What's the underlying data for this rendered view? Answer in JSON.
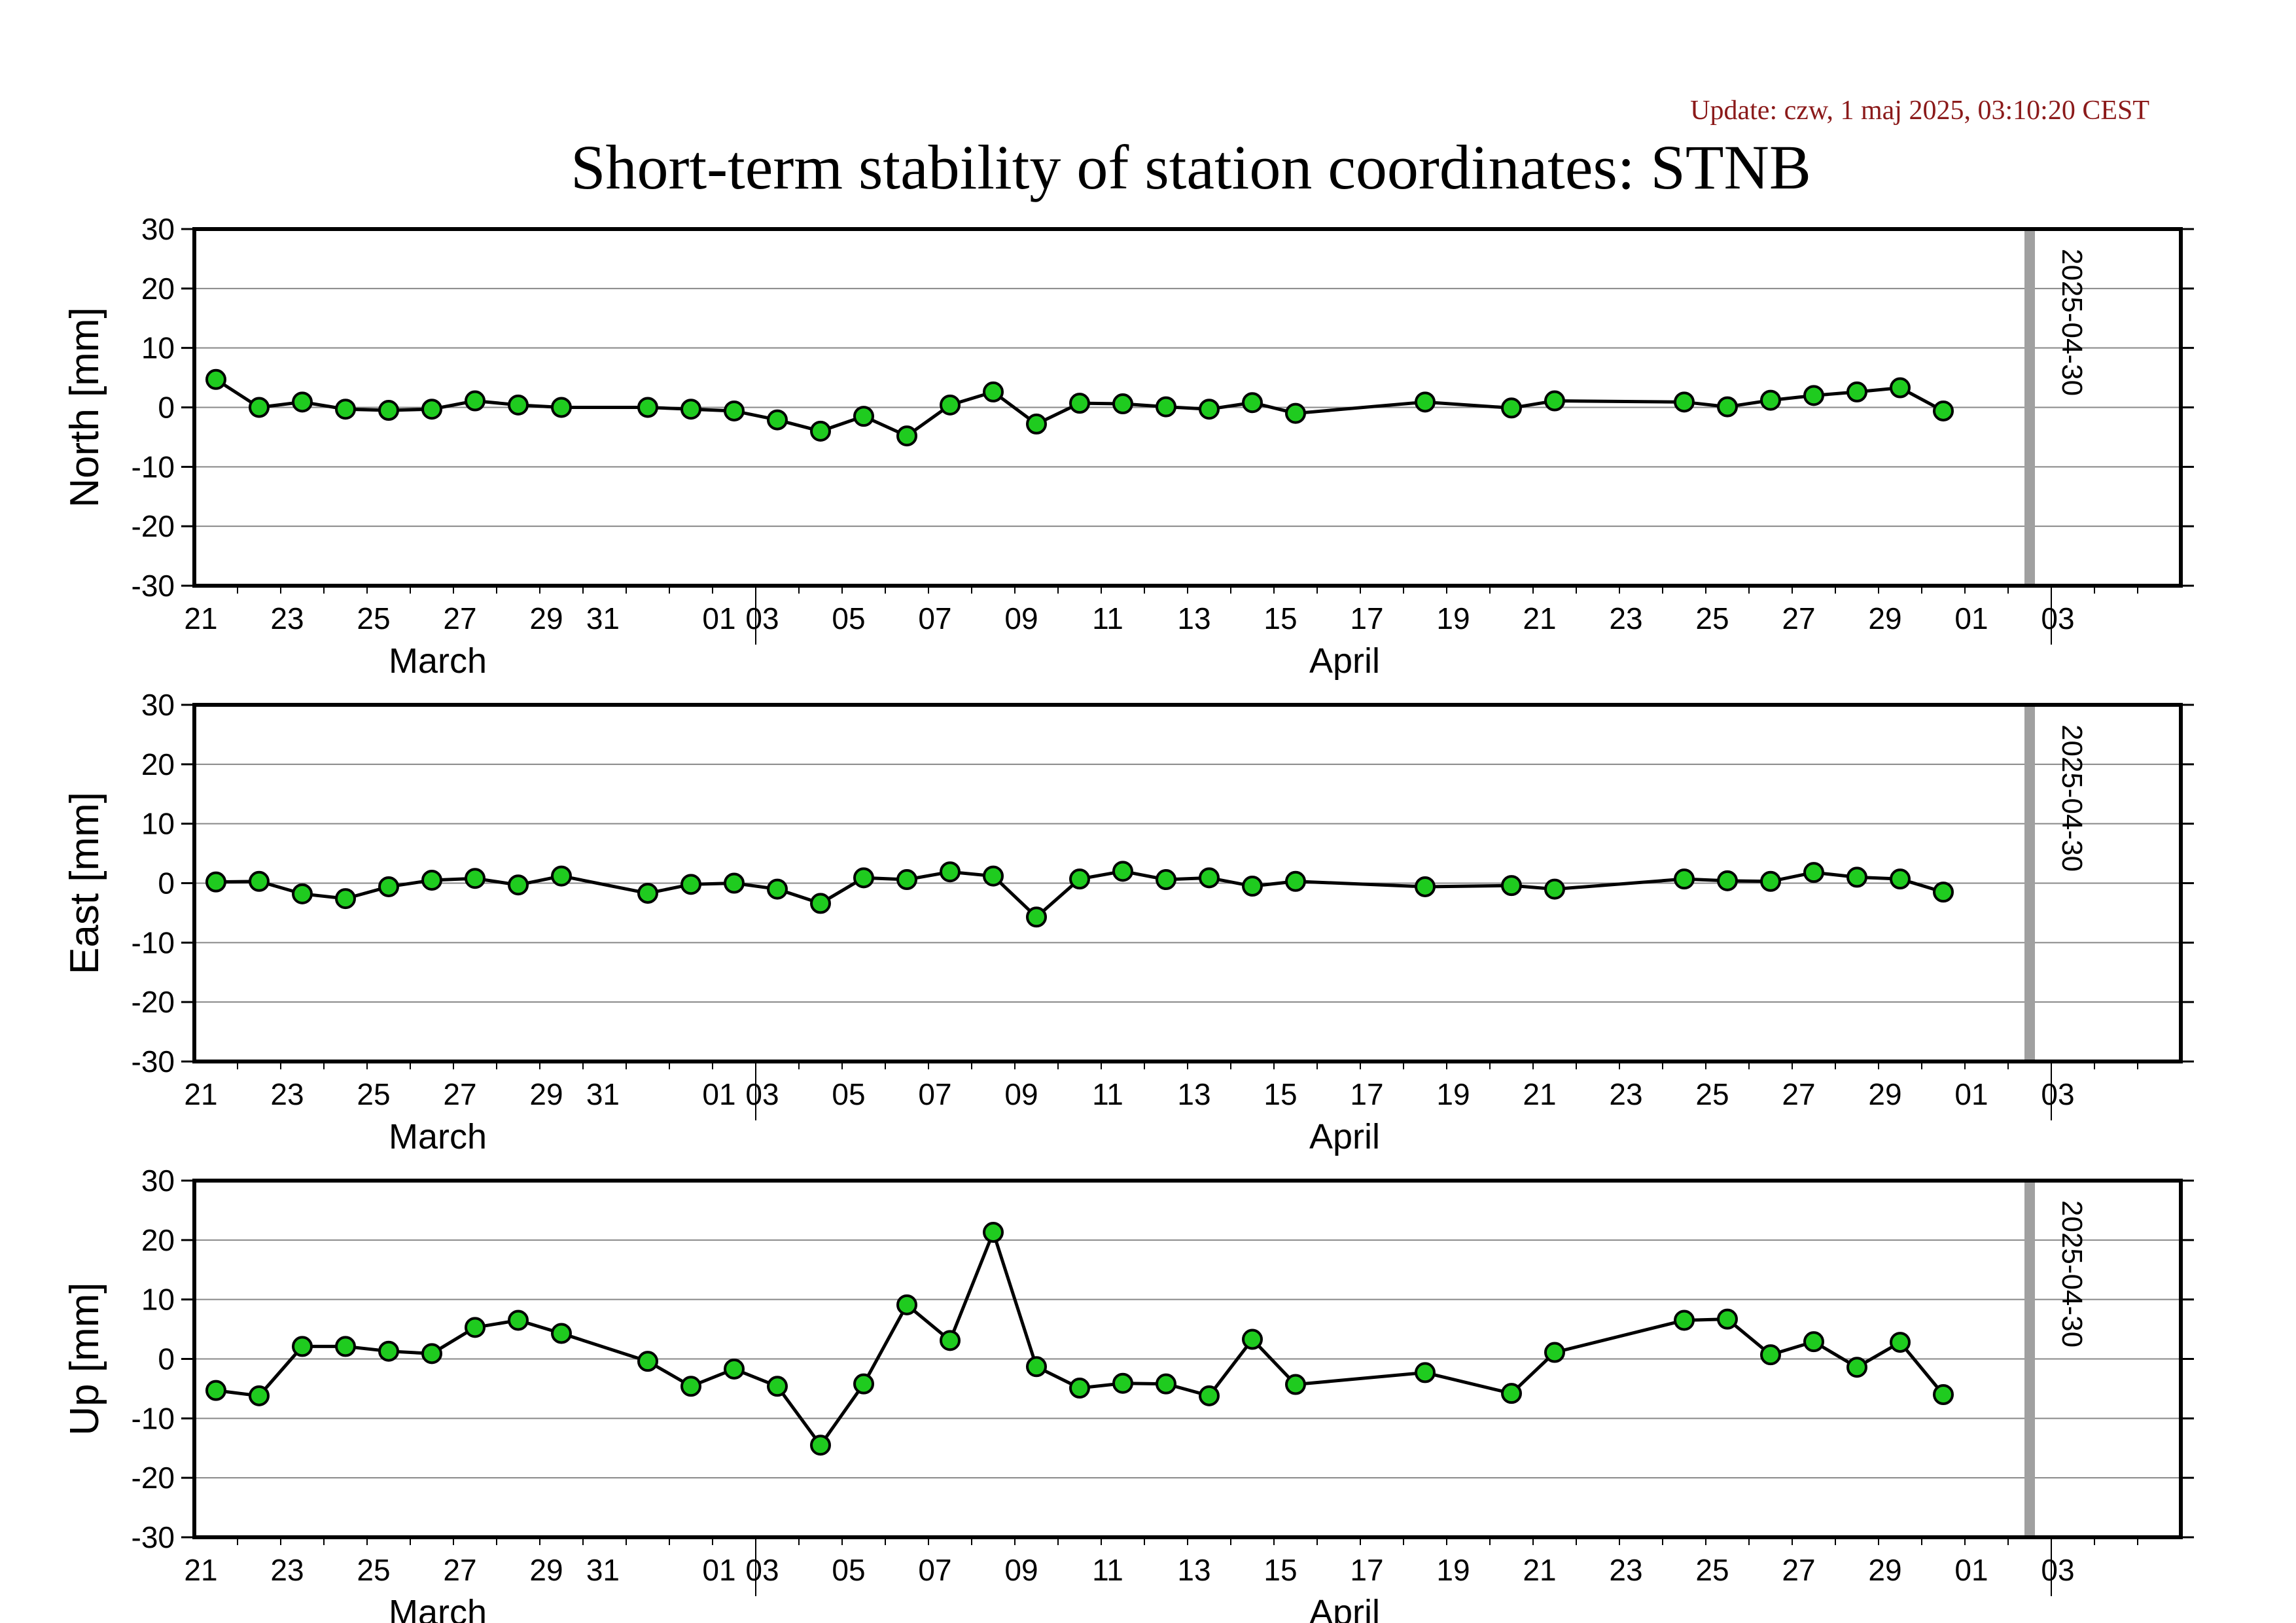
{
  "header": {
    "update_text": "Update: czw, 1 maj 2025, 03:10:20 CEST",
    "title": "Short-term stability of station coordinates: STNB"
  },
  "colors": {
    "update_text": "#8b1a1a",
    "marker_fill": "#1fcb1f",
    "marker_stroke": "#000000",
    "line": "#000000",
    "gridline": "#888888",
    "date_marker": "#a0a0a0"
  },
  "chart_data": [
    {
      "type": "line",
      "ylabel": "North [mm]",
      "ylim": [
        -30,
        30
      ],
      "yticks": [
        30,
        20,
        10,
        0,
        -10,
        -20,
        -30
      ],
      "xlim": [
        "2025-03-19",
        "2025-05-04"
      ],
      "xtick_labels": [
        "21",
        "23",
        "25",
        "27",
        "29",
        "31",
        "01",
        "03",
        "05",
        "07",
        "09",
        "11",
        "13",
        "15",
        "17",
        "19",
        "21",
        "23",
        "25",
        "27",
        "29",
        "01",
        "03"
      ],
      "month_labels": [
        "March",
        "April"
      ],
      "grid": true,
      "marker_date": "2025-04-30",
      "marker_label": "2025-04-30",
      "series": [
        {
          "x": [
            "2025-03-19",
            "2025-03-20",
            "2025-03-21",
            "2025-03-22",
            "2025-03-23",
            "2025-03-24",
            "2025-03-25",
            "2025-03-26",
            "2025-03-27",
            "2025-03-29",
            "2025-03-30",
            "2025-03-31",
            "2025-04-01",
            "2025-04-02",
            "2025-04-03",
            "2025-04-04",
            "2025-04-05",
            "2025-04-06",
            "2025-04-07",
            "2025-04-08",
            "2025-04-09",
            "2025-04-10",
            "2025-04-11",
            "2025-04-12",
            "2025-04-13",
            "2025-04-16",
            "2025-04-18",
            "2025-04-19",
            "2025-04-22",
            "2025-04-23",
            "2025-04-24",
            "2025-04-25",
            "2025-04-26",
            "2025-04-27",
            "2025-04-28"
          ],
          "values": [
            4.7,
            0.0,
            0.9,
            -0.3,
            -0.5,
            -0.3,
            1.1,
            0.4,
            0.0,
            0.0,
            -0.3,
            -0.6,
            -2.1,
            -4.0,
            -1.5,
            -4.8,
            0.4,
            2.6,
            -2.8,
            0.7,
            0.6,
            0.1,
            -0.3,
            0.8,
            -1.0,
            0.9,
            -0.1,
            1.1,
            0.9,
            0.1,
            1.2,
            2.0,
            2.6,
            3.3,
            -0.6
          ]
        }
      ]
    },
    {
      "type": "line",
      "ylabel": "East [mm]",
      "ylim": [
        -30,
        30
      ],
      "yticks": [
        30,
        20,
        10,
        0,
        -10,
        -20,
        -30
      ],
      "xlim": [
        "2025-03-19",
        "2025-05-04"
      ],
      "xtick_labels": [
        "21",
        "23",
        "25",
        "27",
        "29",
        "31",
        "01",
        "03",
        "05",
        "07",
        "09",
        "11",
        "13",
        "15",
        "17",
        "19",
        "21",
        "23",
        "25",
        "27",
        "29",
        "01",
        "03"
      ],
      "month_labels": [
        "March",
        "April"
      ],
      "grid": true,
      "marker_date": "2025-04-30",
      "marker_label": "2025-04-30",
      "series": [
        {
          "x": [
            "2025-03-19",
            "2025-03-20",
            "2025-03-21",
            "2025-03-22",
            "2025-03-23",
            "2025-03-24",
            "2025-03-25",
            "2025-03-26",
            "2025-03-27",
            "2025-03-29",
            "2025-03-30",
            "2025-03-31",
            "2025-04-01",
            "2025-04-02",
            "2025-04-03",
            "2025-04-04",
            "2025-04-05",
            "2025-04-06",
            "2025-04-07",
            "2025-04-08",
            "2025-04-09",
            "2025-04-10",
            "2025-04-11",
            "2025-04-12",
            "2025-04-13",
            "2025-04-16",
            "2025-04-18",
            "2025-04-19",
            "2025-04-22",
            "2025-04-23",
            "2025-04-24",
            "2025-04-25",
            "2025-04-26",
            "2025-04-27",
            "2025-04-28"
          ],
          "values": [
            0.2,
            0.3,
            -1.8,
            -2.6,
            -0.6,
            0.5,
            0.8,
            -0.3,
            1.2,
            -1.7,
            -0.2,
            0.0,
            -1.0,
            -3.4,
            0.9,
            0.6,
            1.9,
            1.2,
            -5.7,
            0.7,
            2.0,
            0.6,
            0.9,
            -0.5,
            0.3,
            -0.6,
            -0.4,
            -1.0,
            0.7,
            0.4,
            0.3,
            1.8,
            1.0,
            0.7,
            -1.5
          ]
        }
      ]
    },
    {
      "type": "line",
      "ylabel": "Up [mm]",
      "ylim": [
        -30,
        30
      ],
      "yticks": [
        30,
        20,
        10,
        0,
        -10,
        -20,
        -30
      ],
      "xlim": [
        "2025-03-19",
        "2025-05-04"
      ],
      "xtick_labels": [
        "21",
        "23",
        "25",
        "27",
        "29",
        "31",
        "01",
        "03",
        "05",
        "07",
        "09",
        "11",
        "13",
        "15",
        "17",
        "19",
        "21",
        "23",
        "25",
        "27",
        "29",
        "01",
        "03"
      ],
      "month_labels": [
        "March",
        "April"
      ],
      "grid": true,
      "marker_date": "2025-04-30",
      "marker_label": "2025-04-30",
      "series": [
        {
          "x": [
            "2025-03-19",
            "2025-03-20",
            "2025-03-21",
            "2025-03-22",
            "2025-03-23",
            "2025-03-24",
            "2025-03-25",
            "2025-03-26",
            "2025-03-27",
            "2025-03-29",
            "2025-03-30",
            "2025-03-31",
            "2025-04-01",
            "2025-04-02",
            "2025-04-03",
            "2025-04-04",
            "2025-04-05",
            "2025-04-06",
            "2025-04-07",
            "2025-04-08",
            "2025-04-09",
            "2025-04-10",
            "2025-04-11",
            "2025-04-12",
            "2025-04-13",
            "2025-04-16",
            "2025-04-18",
            "2025-04-19",
            "2025-04-22",
            "2025-04-23",
            "2025-04-24",
            "2025-04-25",
            "2025-04-26",
            "2025-04-27",
            "2025-04-28"
          ],
          "values": [
            -5.3,
            -6.2,
            2.1,
            2.1,
            1.3,
            0.9,
            5.3,
            6.5,
            4.3,
            -0.4,
            -4.6,
            -1.7,
            -4.6,
            -14.5,
            -4.2,
            9.1,
            3.1,
            21.3,
            -1.3,
            -4.9,
            -4.1,
            -4.2,
            -6.2,
            3.3,
            -4.3,
            -2.3,
            -5.8,
            1.1,
            6.5,
            6.7,
            0.7,
            2.9,
            -1.4,
            2.8,
            -6.0
          ]
        }
      ]
    }
  ]
}
